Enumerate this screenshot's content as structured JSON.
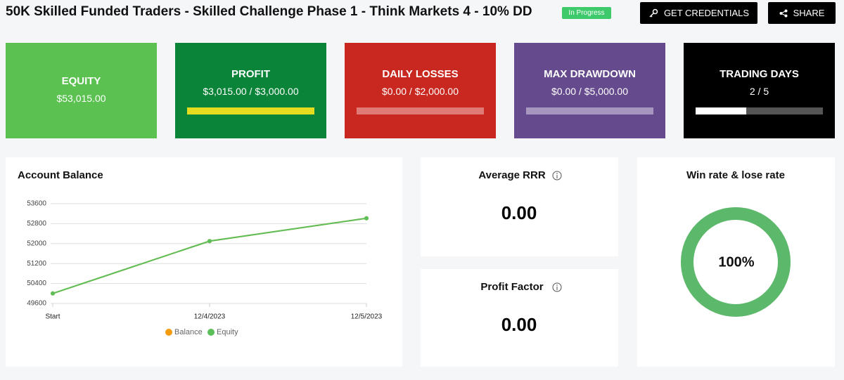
{
  "header": {
    "title": "50K Skilled Funded Traders - Skilled Challenge Phase 1 - Think Markets 4 - 10% DD",
    "status": "In Progress",
    "buttons": [
      "GET CREDENTIALS",
      "SHARE"
    ]
  },
  "stats": [
    {
      "label": "EQUITY",
      "value": "$53,015.00",
      "color": "#5bc150"
    },
    {
      "label": "PROFIT",
      "value": "$3,015.00 / $3,000.00",
      "color": "#0a8438"
    },
    {
      "label": "DAILY LOSSES",
      "value": "$0.00 / $2,000.00",
      "color": "#c8281f"
    },
    {
      "label": "MAX DRAWDOWN",
      "value": "$0.00 / $5,000.00",
      "color": "#654a8d"
    },
    {
      "label": "TRADING DAYS",
      "value": "2 / 5",
      "color": "#000000"
    }
  ],
  "chart_data": {
    "type": "line",
    "title": "Account Balance",
    "categories": [
      "Start",
      "12/4/2023",
      "12/5/2023"
    ],
    "series": [
      {
        "name": "Balance",
        "color": "#f39c12",
        "values": [
          50000,
          52100,
          53015
        ]
      },
      {
        "name": "Equity",
        "color": "#5cbf5a",
        "values": [
          50000,
          52100,
          53015
        ]
      }
    ],
    "ylim": [
      49600,
      53600
    ],
    "yticks": [
      49600,
      50400,
      51200,
      52000,
      52800,
      53600
    ],
    "grid": true
  },
  "metrics": [
    {
      "title": "Average RRR",
      "value": "0.00"
    },
    {
      "title": "Profit Factor",
      "value": "0.00"
    }
  ],
  "win_rate": {
    "title": "Win rate & lose rate",
    "value": 100,
    "label": "100%",
    "color": "#5cb86a"
  }
}
